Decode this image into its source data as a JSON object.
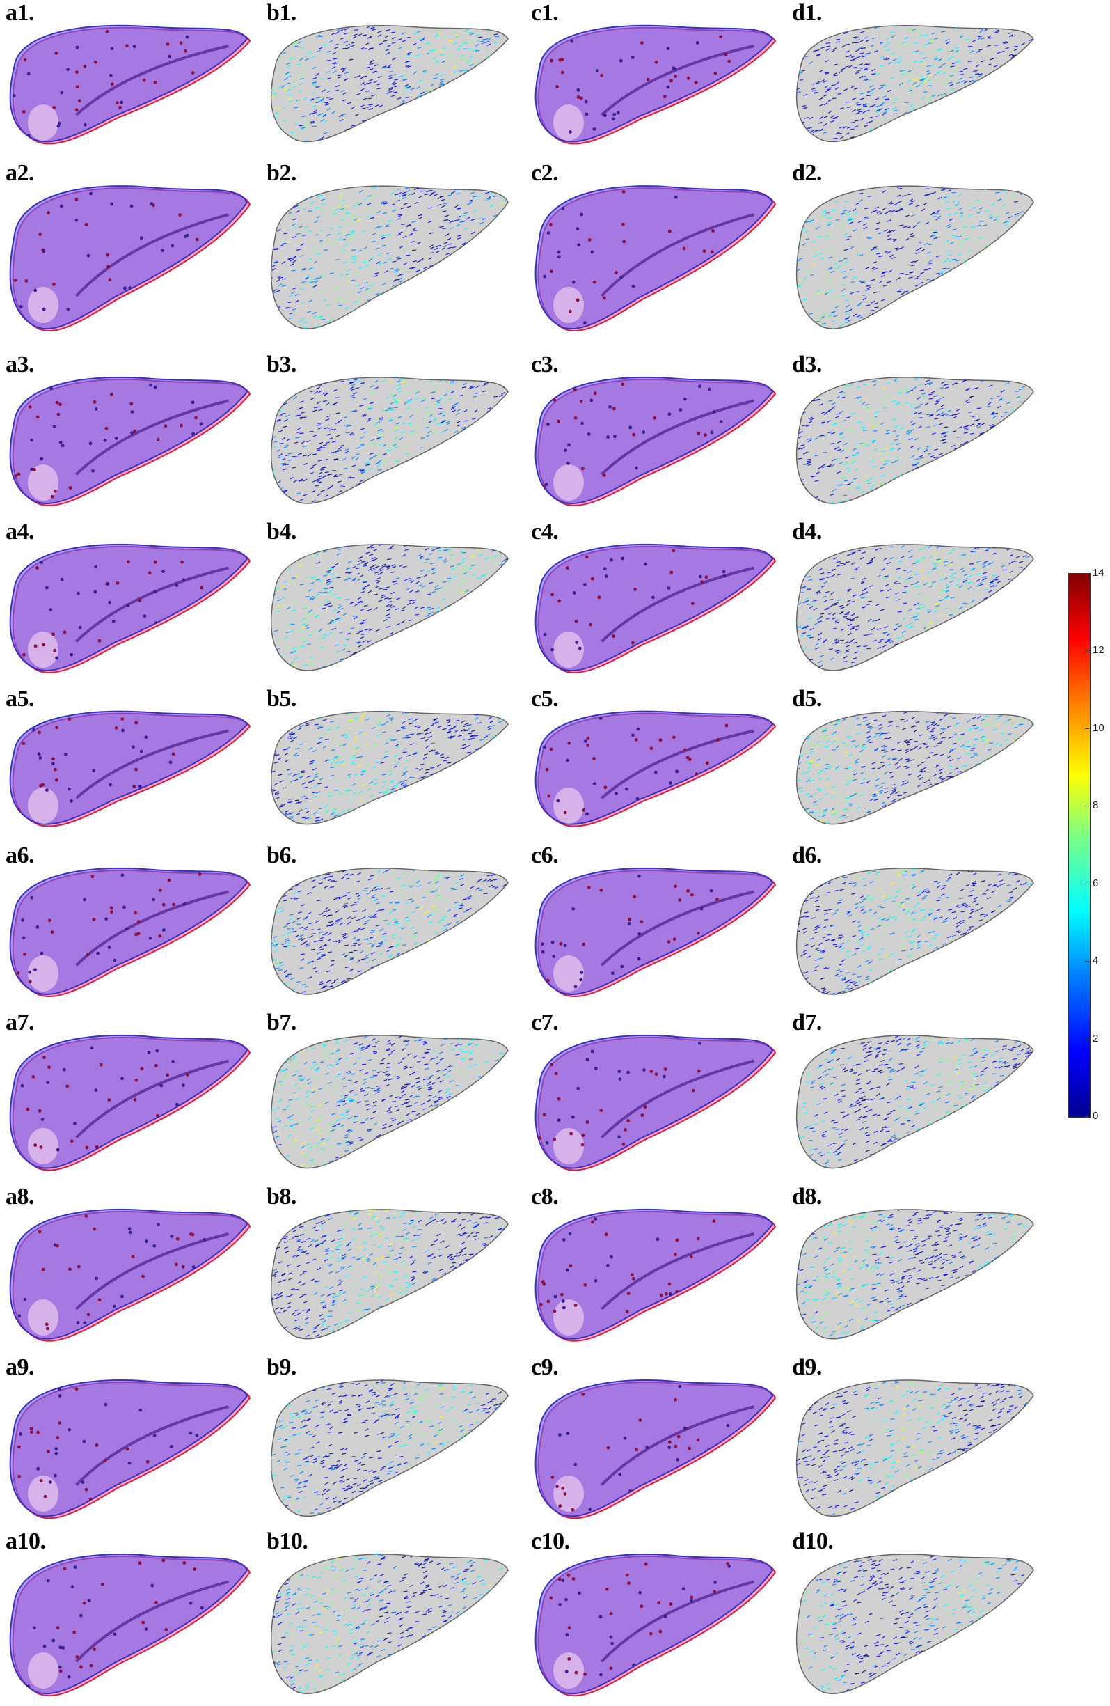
{
  "panels": [
    {
      "label": "a1.",
      "kind": "overlay"
    },
    {
      "label": "b1.",
      "kind": "vector"
    },
    {
      "label": "c1.",
      "kind": "overlay"
    },
    {
      "label": "d1.",
      "kind": "vector"
    },
    {
      "label": "a2.",
      "kind": "overlay"
    },
    {
      "label": "b2.",
      "kind": "vector"
    },
    {
      "label": "c2.",
      "kind": "overlay"
    },
    {
      "label": "d2.",
      "kind": "vector"
    },
    {
      "label": "a3.",
      "kind": "overlay"
    },
    {
      "label": "b3.",
      "kind": "vector"
    },
    {
      "label": "c3.",
      "kind": "overlay"
    },
    {
      "label": "d3.",
      "kind": "vector"
    },
    {
      "label": "a4.",
      "kind": "overlay"
    },
    {
      "label": "b4.",
      "kind": "vector"
    },
    {
      "label": "c4.",
      "kind": "overlay"
    },
    {
      "label": "d4.",
      "kind": "vector"
    },
    {
      "label": "a5.",
      "kind": "overlay"
    },
    {
      "label": "b5.",
      "kind": "vector"
    },
    {
      "label": "c5.",
      "kind": "overlay"
    },
    {
      "label": "d5.",
      "kind": "vector"
    },
    {
      "label": "a6.",
      "kind": "overlay"
    },
    {
      "label": "b6.",
      "kind": "vector"
    },
    {
      "label": "c6.",
      "kind": "overlay"
    },
    {
      "label": "d6.",
      "kind": "vector"
    },
    {
      "label": "a7.",
      "kind": "overlay"
    },
    {
      "label": "b7.",
      "kind": "vector"
    },
    {
      "label": "c7.",
      "kind": "overlay"
    },
    {
      "label": "d7.",
      "kind": "vector"
    },
    {
      "label": "a8.",
      "kind": "overlay"
    },
    {
      "label": "b8.",
      "kind": "vector"
    },
    {
      "label": "c8.",
      "kind": "overlay"
    },
    {
      "label": "d8.",
      "kind": "vector"
    },
    {
      "label": "a9.",
      "kind": "overlay"
    },
    {
      "label": "b9.",
      "kind": "vector"
    },
    {
      "label": "c9.",
      "kind": "overlay"
    },
    {
      "label": "d9.",
      "kind": "vector"
    },
    {
      "label": "a10.",
      "kind": "overlay"
    },
    {
      "label": "b10.",
      "kind": "vector"
    },
    {
      "label": "c10.",
      "kind": "overlay"
    },
    {
      "label": "d10.",
      "kind": "vector"
    }
  ],
  "colorbar": {
    "ticks": [
      "14",
      "12",
      "10",
      "8",
      "6",
      "4",
      "2",
      "0"
    ],
    "min": 0,
    "max": 14
  },
  "colors": {
    "overlay_blue": "#6a5cff",
    "overlay_red": "#ff5a78",
    "vector_gray": "#9a9a9a"
  }
}
